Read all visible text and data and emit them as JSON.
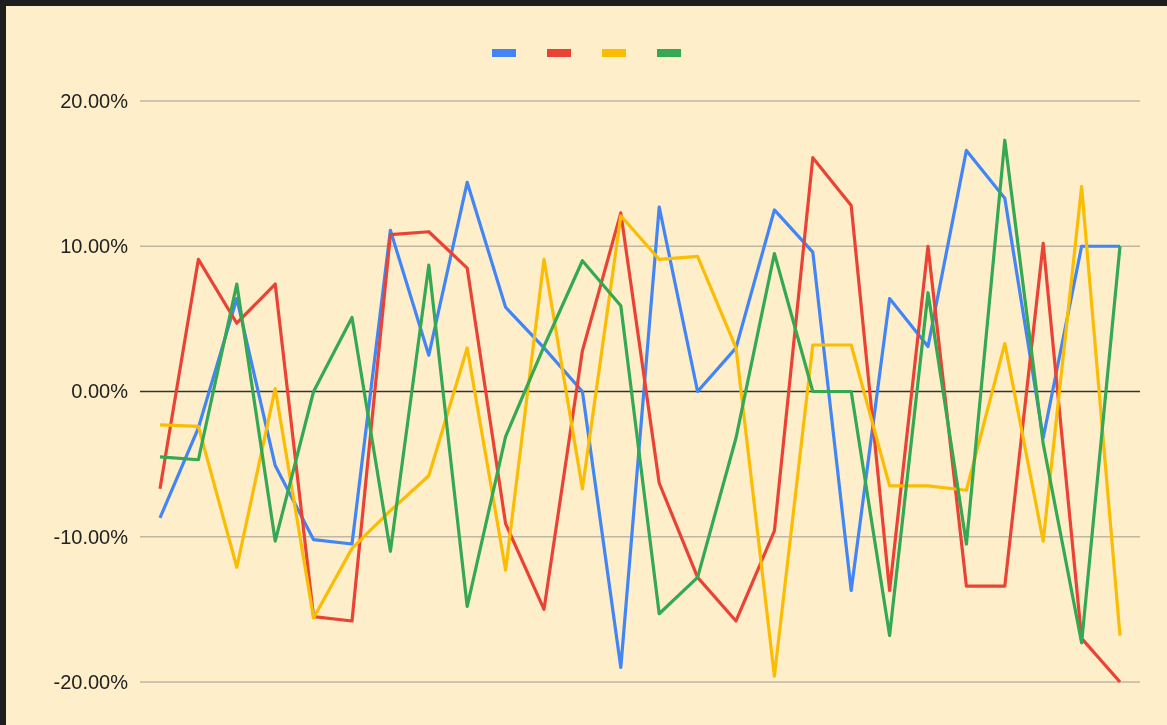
{
  "chart_data": {
    "type": "line",
    "categories": [
      null,
      null,
      null,
      null,
      null,
      null,
      null,
      null,
      null,
      null,
      null,
      null,
      null,
      null,
      null,
      null,
      null,
      null,
      null,
      null,
      null,
      null,
      null,
      null,
      null,
      null
    ],
    "ylim": [
      -20,
      20
    ],
    "yticks": [
      {
        "value": -20,
        "label": "-20.00%"
      },
      {
        "value": -10,
        "label": "-10.00%"
      },
      {
        "value": 0,
        "label": "0.00%"
      },
      {
        "value": 10,
        "label": "10.00%"
      },
      {
        "value": 20,
        "label": "20.00%"
      }
    ],
    "grid": "y",
    "line_style": "solid",
    "series": [
      {
        "color": "#4285f4",
        "values": [
          -8.7,
          -2.5,
          6.4,
          -5.1,
          -10.2,
          -10.5,
          11.1,
          2.5,
          14.4,
          5.8,
          3.0,
          0,
          -19.0,
          12.7,
          0,
          3.0,
          12.5,
          9.6,
          -13.7,
          6.4,
          3.1,
          16.6,
          13.3,
          -3.2,
          10,
          10
        ]
      },
      {
        "color": "#ea4335",
        "values": [
          -6.7,
          9.1,
          4.7,
          7.4,
          -15.5,
          -15.8,
          10.8,
          11.0,
          8.5,
          -9.1,
          -15.0,
          2.8,
          12.3,
          -6.3,
          -12.8,
          -15.8,
          -9.6,
          16.1,
          12.8,
          -13.7,
          10.0,
          -13.4,
          -13.4,
          10.2,
          -17.0,
          -20.0
        ]
      },
      {
        "color": "#fbbc04",
        "values": [
          -2.3,
          -2.4,
          -12.1,
          0.2,
          -15.6,
          -10.8,
          -8.2,
          -5.8,
          3.0,
          -12.3,
          9.1,
          -6.7,
          12.1,
          9.1,
          9.3,
          3.0,
          -19.6,
          3.2,
          3.2,
          -6.5,
          -6.5,
          -6.8,
          3.3,
          -10.3,
          14.1,
          -16.8
        ]
      },
      {
        "color": "#34a853",
        "values": [
          -4.5,
          -4.7,
          7.4,
          -10.3,
          0,
          5.1,
          -11.0,
          8.7,
          -14.8,
          -3.1,
          3.1,
          9.0,
          5.9,
          -15.3,
          -12.8,
          -3.2,
          9.5,
          0,
          0,
          -16.8,
          6.8,
          -10.5,
          17.3,
          -3.6,
          -17.3,
          10
        ]
      }
    ]
  }
}
